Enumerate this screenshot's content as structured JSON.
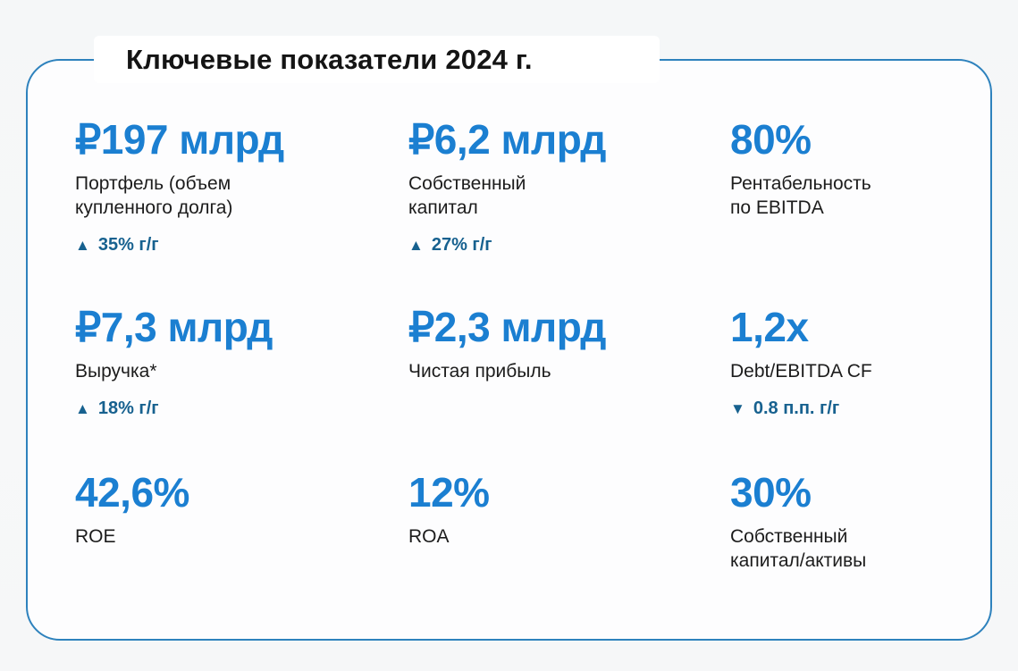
{
  "title": "Ключевые показатели 2024 г.",
  "colors": {
    "accent_blue": "#1b7fd1",
    "delta_blue": "#17618f",
    "card_border": "#2e82bd",
    "title_text": "#141414",
    "label_text": "#1c1c1c",
    "page_background": "#f6f7f8",
    "card_background": "#fdfdfe",
    "title_background": "#ffffff"
  },
  "metrics": [
    {
      "value": "₽197 млрд",
      "label": "Портфель (объем\nкупленного долга)",
      "arrow": "▲",
      "delta": "35% г/г"
    },
    {
      "value": "₽6,2 млрд",
      "label": "Собственный\nкапитал",
      "arrow": "▲",
      "delta": "27% г/г"
    },
    {
      "value": "80%",
      "label": "Рентабельность\nпо EBITDA",
      "arrow": "",
      "delta": ""
    },
    {
      "value": "₽7,3 млрд",
      "label": "Выручка*",
      "arrow": "▲",
      "delta": "18% г/г"
    },
    {
      "value": "₽2,3 млрд",
      "label": "Чистая прибыль",
      "arrow": "",
      "delta": ""
    },
    {
      "value": "1,2x",
      "label": "Debt/EBITDA CF",
      "arrow": "▼",
      "delta": "0.8 п.п. г/г"
    },
    {
      "value": "42,6%",
      "label": "ROE",
      "arrow": "",
      "delta": ""
    },
    {
      "value": "12%",
      "label": "ROA",
      "arrow": "",
      "delta": ""
    },
    {
      "value": "30%",
      "label": "Собственный\nкапитал/активы",
      "arrow": "",
      "delta": ""
    }
  ]
}
